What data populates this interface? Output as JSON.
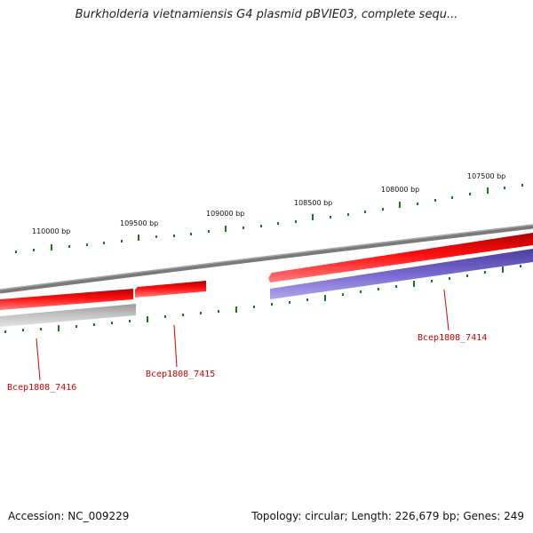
{
  "map": {
    "title": "Burkholderia vietnamiensis G4 plasmid pBVIE03, complete sequ...",
    "accession": "Accession: NC_009229",
    "summary": "Topology: circular; Length: 226,679 bp; Genes: 249",
    "colors": {
      "backbone": "#7a7a7a",
      "forward_gene": "#ff0000",
      "reverse_gene": "#7060c8",
      "pseudo_gene": "#b4b4b4",
      "tick": "#1a7a1a",
      "gene_label": "#cc0000"
    },
    "tick_labels": [
      "110000 bp",
      "109500 bp",
      "109000 bp",
      "108500 bp",
      "108000 bp",
      "107500 bp"
    ],
    "genes": [
      {
        "label": "Bcep1808_7416",
        "strand": "reverse",
        "color_key": "pseudo_gene"
      },
      {
        "label": "Bcep1808_7415",
        "strand": "forward",
        "color_key": "forward_gene"
      },
      {
        "label": "Bcep1808_7414",
        "strand": "reverse",
        "color_key": "reverse_gene"
      }
    ]
  }
}
